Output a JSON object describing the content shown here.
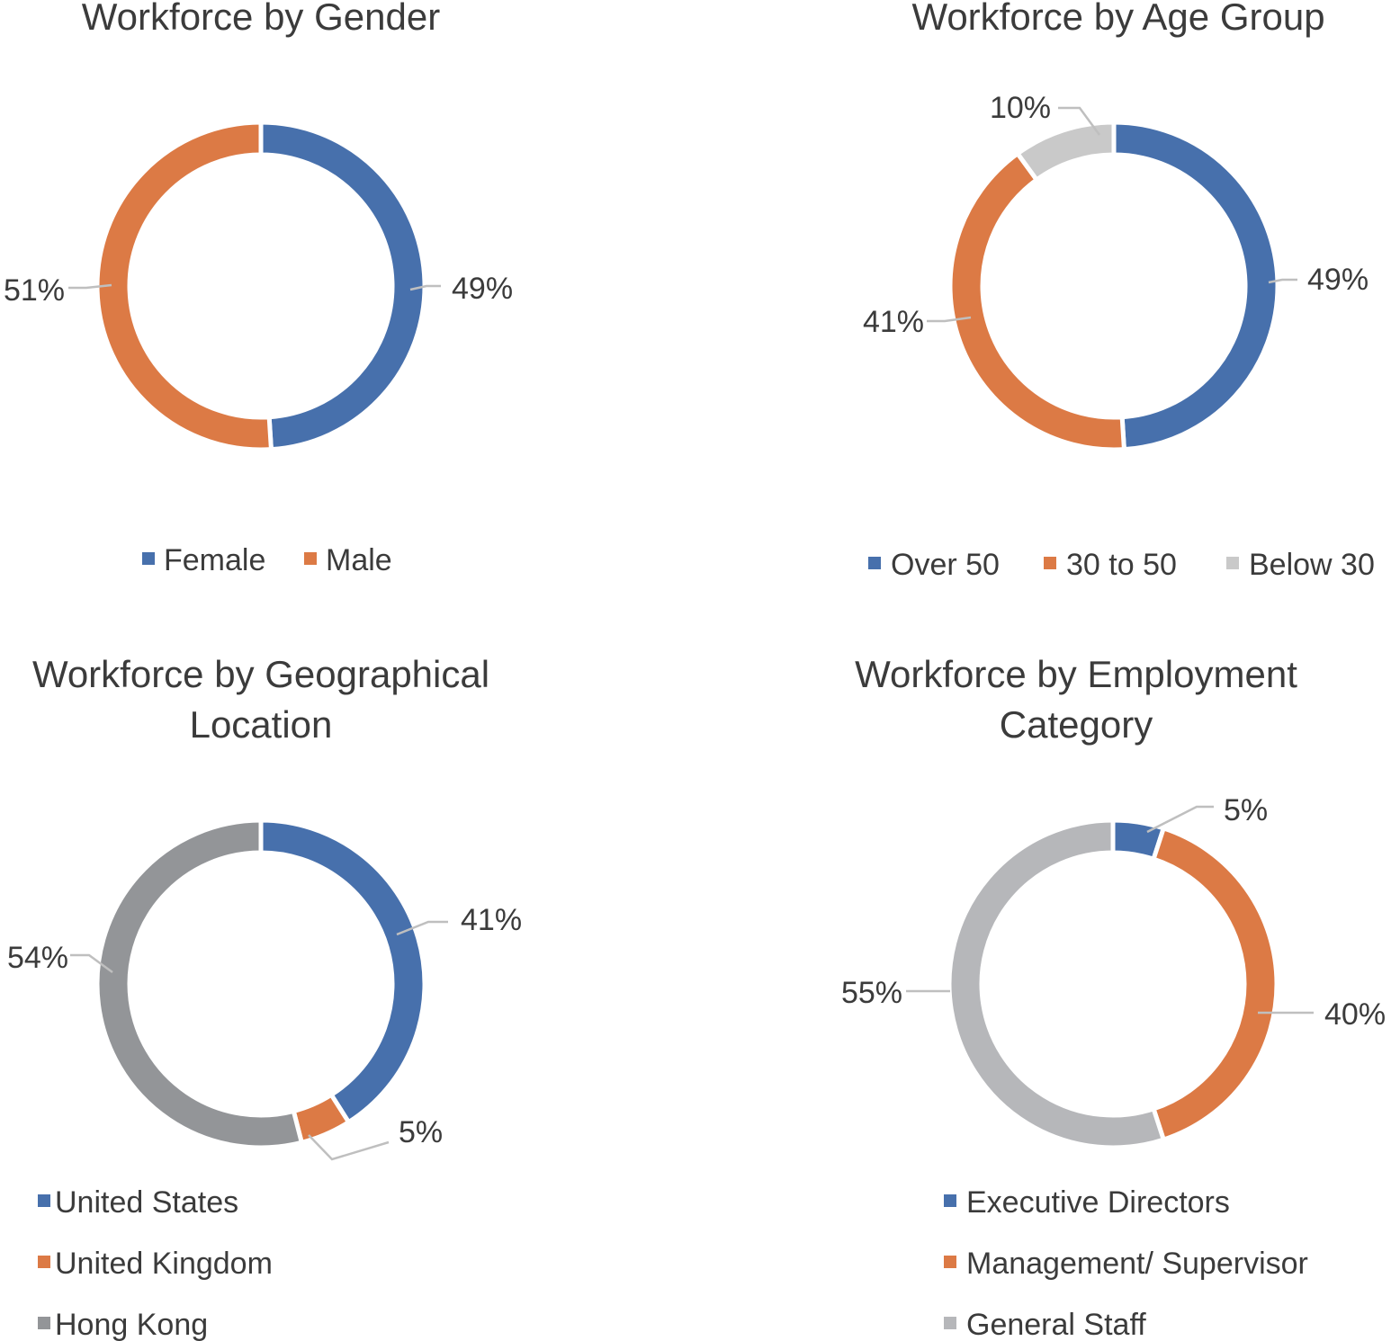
{
  "chart_data": [
    {
      "type": "pie",
      "title": "Workforce by Gender",
      "categories": [
        "Female",
        "Male"
      ],
      "values": [
        49,
        51
      ],
      "labels": [
        "49%",
        "51%"
      ],
      "colors": [
        "#4770AC",
        "#DC7A45"
      ],
      "legend": "bottom"
    },
    {
      "type": "pie",
      "title": "Workforce by Age Group",
      "categories": [
        "Over 50",
        "30 to 50",
        "Below 30"
      ],
      "values": [
        49,
        41,
        10
      ],
      "labels": [
        "49%",
        "41%",
        "10%"
      ],
      "colors": [
        "#4770AC",
        "#DC7A45",
        "#C9C9C9"
      ],
      "legend": "bottom"
    },
    {
      "type": "pie",
      "title": "Workforce by Geographical Location",
      "categories": [
        "United States",
        "United Kingdom",
        "Hong Kong"
      ],
      "values": [
        41,
        5,
        54
      ],
      "labels": [
        "41%",
        "5%",
        "54%"
      ],
      "colors": [
        "#4770AC",
        "#DC7A45",
        "#939598"
      ],
      "legend": "bottom"
    },
    {
      "type": "pie",
      "title": "Workforce by Employment Category",
      "categories": [
        "Executive Directors",
        "Management/ Supervisor",
        "General Staff"
      ],
      "values": [
        5,
        40,
        55
      ],
      "labels": [
        "5%",
        "40%",
        "55%"
      ],
      "colors": [
        "#4770AC",
        "#DC7A45",
        "#B6B7BA"
      ],
      "legend": "bottom"
    }
  ]
}
